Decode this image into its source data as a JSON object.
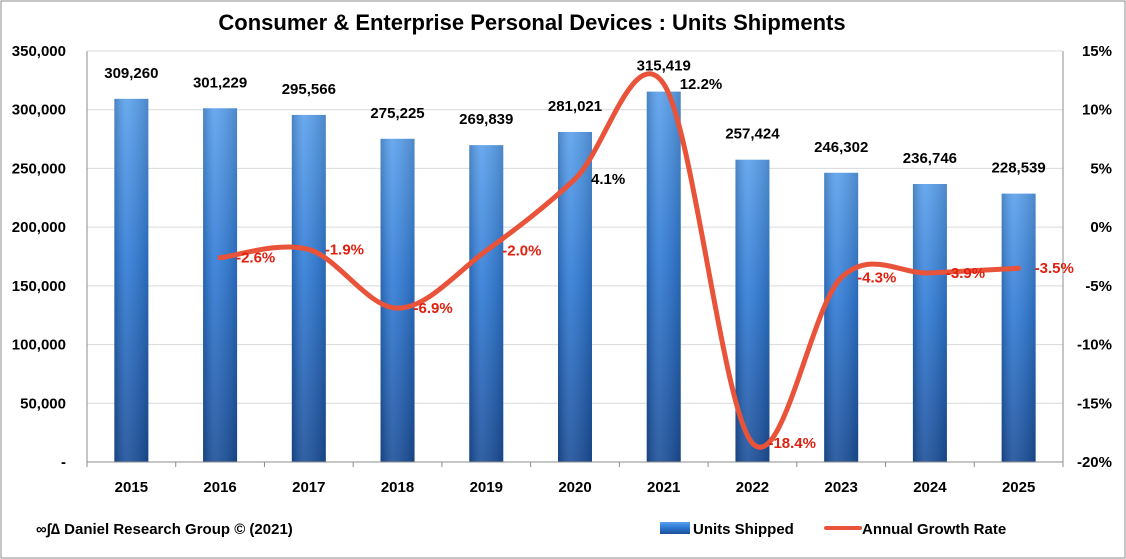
{
  "chart_data": {
    "type": "bar",
    "title": "Consumer & Enterprise Personal Devices : Units Shipments",
    "categories": [
      "2015",
      "2016",
      "2017",
      "2018",
      "2019",
      "2020",
      "2021",
      "2022",
      "2023",
      "2024",
      "2025"
    ],
    "series": [
      {
        "name": "Units Shipped",
        "type": "bar",
        "axis": "left",
        "values": [
          309260,
          301229,
          295566,
          275225,
          269839,
          281021,
          315419,
          257424,
          246302,
          236746,
          228539
        ],
        "labels": [
          "309,260",
          "301,229",
          "295,566",
          "275,225",
          "269,839",
          "281,021",
          "315,419",
          "257,424",
          "246,302",
          "236,746",
          "228,539"
        ]
      },
      {
        "name": "Annual Growth Rate",
        "type": "line",
        "axis": "right",
        "values": [
          null,
          -2.6,
          -1.9,
          -6.9,
          -2.0,
          4.1,
          12.2,
          -18.4,
          -4.3,
          -3.9,
          -3.5
        ],
        "labels": [
          "",
          "-2.6%",
          "-1.9%",
          "-6.9%",
          "-2.0%",
          "4.1%",
          "12.2%",
          "-18.4%",
          "-4.3%",
          "-3.9%",
          "-3.5%"
        ]
      }
    ],
    "y_left": {
      "ylim": [
        0,
        350000
      ],
      "ticks": [
        0,
        50000,
        100000,
        150000,
        200000,
        250000,
        300000,
        350000
      ],
      "tick_labels": [
        "-",
        "50,000",
        "100,000",
        "150,000",
        "200,000",
        "250,000",
        "300,000",
        "350,000"
      ]
    },
    "y_right": {
      "ylim": [
        -20,
        15
      ],
      "ticks": [
        -20,
        -15,
        -10,
        -5,
        0,
        5,
        10,
        15
      ],
      "tick_labels": [
        "-20%",
        "-15%",
        "-10%",
        "-5%",
        "0%",
        "5%",
        "10%",
        "15%"
      ]
    },
    "grid": true,
    "legend": "bottom-right",
    "credit": "∞∫∆ Daniel Research Group © (2021)"
  },
  "colors": {
    "bar_top": "#5aa0ec",
    "bar_mid": "#2f7ad6",
    "bar_bottom": "#1b4f9a",
    "line": "#e8533a",
    "rate_label": "#e02010",
    "grid": "#d9d9d9",
    "border": "#8c8c8c"
  }
}
